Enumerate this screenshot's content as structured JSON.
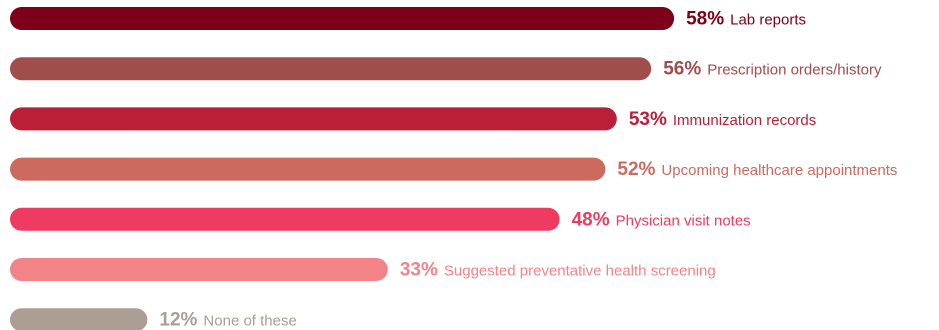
{
  "chart_data": {
    "type": "bar",
    "orientation": "horizontal",
    "categories": [
      "Lab reports",
      "Prescription orders/history",
      "Immunization records",
      "Upcoming healthcare appointments",
      "Physician visit notes",
      "Suggested preventative health screening",
      "None of these"
    ],
    "values": [
      58,
      56,
      53,
      52,
      48,
      33,
      12
    ],
    "value_labels": [
      "58%",
      "56%",
      "53%",
      "52%",
      "48%",
      "33%",
      "12%"
    ],
    "unit": "%",
    "colors": [
      "#7d0019",
      "#a14d4b",
      "#bb1f37",
      "#cd6a60",
      "#ef3a62",
      "#f28488",
      "#ab9e94"
    ],
    "grid": false,
    "legend": "none"
  }
}
